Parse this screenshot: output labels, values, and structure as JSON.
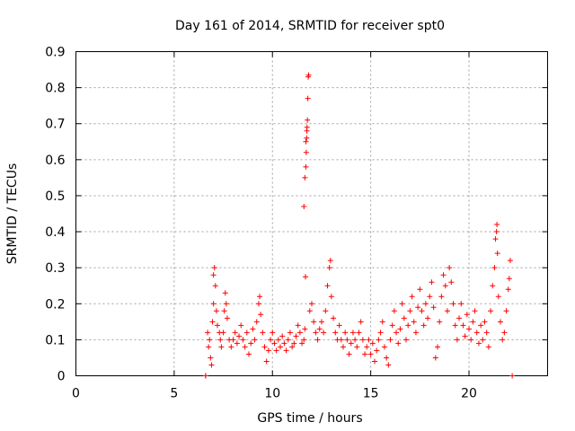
{
  "chart_data": {
    "type": "scatter",
    "title": "Day 161 of 2014, SRMTID for receiver spt0",
    "xlabel": "GPS time / hours",
    "ylabel": "SRMTID / TECUs",
    "xlim": [
      0,
      24
    ],
    "ylim": [
      0,
      0.9
    ],
    "xticks": [
      "0",
      "5",
      "10",
      "15",
      "20"
    ],
    "yticks": [
      "0",
      "0.1",
      "0.2",
      "0.3",
      "0.4",
      "0.5",
      "0.6",
      "0.7",
      "0.8",
      "0.9"
    ],
    "grid": true,
    "marker": "+",
    "color": "#ff0000",
    "series": [
      {
        "name": "SRMTID",
        "points": [
          [
            6.6,
            0.0
          ],
          [
            6.6,
            0.0
          ],
          [
            22.2,
            0.0
          ],
          [
            6.7,
            0.12
          ],
          [
            6.75,
            0.08
          ],
          [
            6.8,
            0.1
          ],
          [
            6.85,
            0.05
          ],
          [
            6.9,
            0.03
          ],
          [
            6.95,
            0.15
          ],
          [
            7.0,
            0.2
          ],
          [
            7.0,
            0.28
          ],
          [
            7.05,
            0.3
          ],
          [
            7.1,
            0.25
          ],
          [
            7.15,
            0.18
          ],
          [
            7.2,
            0.14
          ],
          [
            7.3,
            0.12
          ],
          [
            7.35,
            0.1
          ],
          [
            7.4,
            0.08
          ],
          [
            7.5,
            0.12
          ],
          [
            7.55,
            0.18
          ],
          [
            7.6,
            0.23
          ],
          [
            7.65,
            0.2
          ],
          [
            7.7,
            0.16
          ],
          [
            7.8,
            0.1
          ],
          [
            7.9,
            0.08
          ],
          [
            8.0,
            0.1
          ],
          [
            8.1,
            0.12
          ],
          [
            8.2,
            0.09
          ],
          [
            8.3,
            0.11
          ],
          [
            8.4,
            0.14
          ],
          [
            8.5,
            0.1
          ],
          [
            8.6,
            0.08
          ],
          [
            8.7,
            0.12
          ],
          [
            8.8,
            0.06
          ],
          [
            8.9,
            0.09
          ],
          [
            9.0,
            0.13
          ],
          [
            9.1,
            0.1
          ],
          [
            9.2,
            0.15
          ],
          [
            9.3,
            0.2
          ],
          [
            9.35,
            0.22
          ],
          [
            9.4,
            0.17
          ],
          [
            9.5,
            0.12
          ],
          [
            9.6,
            0.08
          ],
          [
            9.7,
            0.04
          ],
          [
            9.8,
            0.07
          ],
          [
            9.9,
            0.1
          ],
          [
            10.0,
            0.12
          ],
          [
            10.1,
            0.09
          ],
          [
            10.2,
            0.07
          ],
          [
            10.3,
            0.1
          ],
          [
            10.4,
            0.08
          ],
          [
            10.5,
            0.11
          ],
          [
            10.6,
            0.09
          ],
          [
            10.7,
            0.07
          ],
          [
            10.8,
            0.1
          ],
          [
            10.9,
            0.12
          ],
          [
            11.0,
            0.08
          ],
          [
            11.1,
            0.09
          ],
          [
            11.2,
            0.11
          ],
          [
            11.3,
            0.14
          ],
          [
            11.4,
            0.12
          ],
          [
            11.5,
            0.09
          ],
          [
            11.6,
            0.1
          ],
          [
            11.65,
            0.13
          ],
          [
            11.6,
            0.47
          ],
          [
            11.65,
            0.55
          ],
          [
            11.7,
            0.58
          ],
          [
            11.72,
            0.62
          ],
          [
            11.74,
            0.66
          ],
          [
            11.76,
            0.69
          ],
          [
            11.78,
            0.71
          ],
          [
            11.8,
            0.77
          ],
          [
            11.82,
            0.83
          ],
          [
            11.84,
            0.835
          ],
          [
            11.7,
            0.65
          ],
          [
            11.75,
            0.68
          ],
          [
            11.68,
            0.275
          ],
          [
            11.9,
            0.18
          ],
          [
            12.0,
            0.2
          ],
          [
            12.1,
            0.15
          ],
          [
            12.2,
            0.12
          ],
          [
            12.3,
            0.1
          ],
          [
            12.4,
            0.13
          ],
          [
            12.5,
            0.15
          ],
          [
            12.6,
            0.12
          ],
          [
            12.7,
            0.18
          ],
          [
            12.8,
            0.25
          ],
          [
            12.9,
            0.3
          ],
          [
            12.95,
            0.32
          ],
          [
            13.0,
            0.22
          ],
          [
            13.1,
            0.16
          ],
          [
            13.2,
            0.12
          ],
          [
            13.3,
            0.1
          ],
          [
            13.4,
            0.14
          ],
          [
            13.5,
            0.1
          ],
          [
            13.6,
            0.08
          ],
          [
            13.7,
            0.12
          ],
          [
            13.8,
            0.1
          ],
          [
            13.9,
            0.06
          ],
          [
            14.0,
            0.09
          ],
          [
            14.1,
            0.12
          ],
          [
            14.2,
            0.1
          ],
          [
            14.3,
            0.08
          ],
          [
            14.4,
            0.12
          ],
          [
            14.5,
            0.15
          ],
          [
            14.6,
            0.1
          ],
          [
            14.7,
            0.06
          ],
          [
            14.8,
            0.08
          ],
          [
            14.9,
            0.1
          ],
          [
            15.0,
            0.06
          ],
          [
            15.1,
            0.09
          ],
          [
            15.2,
            0.04
          ],
          [
            15.3,
            0.07
          ],
          [
            15.4,
            0.1
          ],
          [
            15.5,
            0.12
          ],
          [
            15.6,
            0.15
          ],
          [
            15.7,
            0.08
          ],
          [
            15.8,
            0.05
          ],
          [
            15.9,
            0.03
          ],
          [
            16.0,
            0.1
          ],
          [
            16.1,
            0.14
          ],
          [
            16.2,
            0.18
          ],
          [
            16.3,
            0.12
          ],
          [
            16.4,
            0.09
          ],
          [
            16.5,
            0.13
          ],
          [
            16.6,
            0.2
          ],
          [
            16.7,
            0.16
          ],
          [
            16.8,
            0.1
          ],
          [
            16.9,
            0.14
          ],
          [
            17.0,
            0.18
          ],
          [
            17.1,
            0.22
          ],
          [
            17.2,
            0.15
          ],
          [
            17.3,
            0.12
          ],
          [
            17.4,
            0.19
          ],
          [
            17.5,
            0.24
          ],
          [
            17.6,
            0.18
          ],
          [
            17.7,
            0.14
          ],
          [
            17.8,
            0.2
          ],
          [
            17.9,
            0.16
          ],
          [
            18.0,
            0.22
          ],
          [
            18.1,
            0.26
          ],
          [
            18.2,
            0.19
          ],
          [
            18.3,
            0.05
          ],
          [
            18.4,
            0.08
          ],
          [
            18.5,
            0.15
          ],
          [
            18.6,
            0.22
          ],
          [
            18.7,
            0.28
          ],
          [
            18.8,
            0.25
          ],
          [
            18.9,
            0.18
          ],
          [
            19.0,
            0.3
          ],
          [
            19.1,
            0.26
          ],
          [
            19.2,
            0.2
          ],
          [
            19.3,
            0.14
          ],
          [
            19.4,
            0.1
          ],
          [
            19.5,
            0.16
          ],
          [
            19.6,
            0.2
          ],
          [
            19.7,
            0.14
          ],
          [
            19.8,
            0.11
          ],
          [
            19.9,
            0.17
          ],
          [
            20.0,
            0.13
          ],
          [
            20.1,
            0.1
          ],
          [
            20.2,
            0.15
          ],
          [
            20.3,
            0.18
          ],
          [
            20.4,
            0.12
          ],
          [
            20.5,
            0.09
          ],
          [
            20.6,
            0.14
          ],
          [
            20.7,
            0.1
          ],
          [
            20.8,
            0.15
          ],
          [
            20.9,
            0.12
          ],
          [
            21.0,
            0.08
          ],
          [
            21.1,
            0.18
          ],
          [
            21.2,
            0.25
          ],
          [
            21.3,
            0.3
          ],
          [
            21.35,
            0.38
          ],
          [
            21.4,
            0.4
          ],
          [
            21.42,
            0.42
          ],
          [
            21.45,
            0.34
          ],
          [
            21.5,
            0.22
          ],
          [
            21.6,
            0.15
          ],
          [
            21.7,
            0.1
          ],
          [
            21.8,
            0.12
          ],
          [
            21.9,
            0.18
          ],
          [
            22.0,
            0.24
          ],
          [
            22.05,
            0.27
          ],
          [
            22.1,
            0.32
          ]
        ]
      }
    ]
  }
}
